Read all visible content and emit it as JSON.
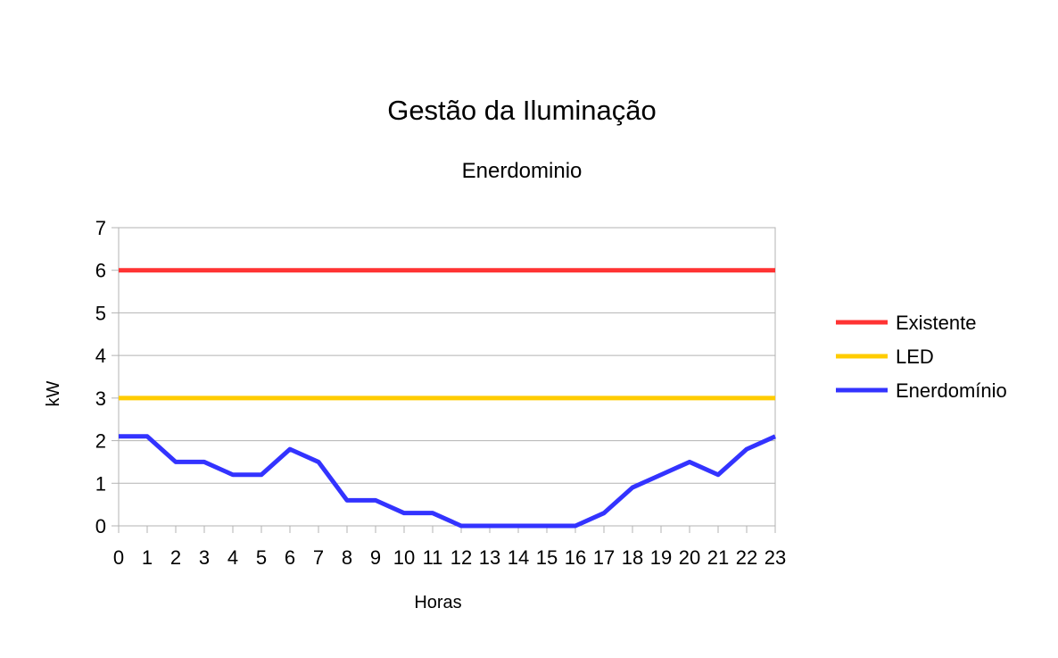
{
  "chart_data": {
    "type": "line",
    "title": "Gestão da Iluminação",
    "subtitle": "Enerdominio",
    "xlabel": "Horas",
    "ylabel": "kW",
    "ylim": [
      0,
      7
    ],
    "yticks": [
      0,
      1,
      2,
      3,
      4,
      5,
      6,
      7
    ],
    "x": [
      0,
      1,
      2,
      3,
      4,
      5,
      6,
      7,
      8,
      9,
      10,
      11,
      12,
      13,
      14,
      15,
      16,
      17,
      18,
      19,
      20,
      21,
      22,
      23
    ],
    "grid": true,
    "legend_position": "right",
    "series": [
      {
        "name": "Existente",
        "color": "#ff3333",
        "values": [
          6,
          6,
          6,
          6,
          6,
          6,
          6,
          6,
          6,
          6,
          6,
          6,
          6,
          6,
          6,
          6,
          6,
          6,
          6,
          6,
          6,
          6,
          6,
          6
        ]
      },
      {
        "name": "LED",
        "color": "#ffcc00",
        "values": [
          3,
          3,
          3,
          3,
          3,
          3,
          3,
          3,
          3,
          3,
          3,
          3,
          3,
          3,
          3,
          3,
          3,
          3,
          3,
          3,
          3,
          3,
          3,
          3
        ]
      },
      {
        "name": "Enerdomínio",
        "color": "#3333ff",
        "values": [
          2.1,
          2.1,
          1.5,
          1.5,
          1.2,
          1.2,
          1.8,
          1.5,
          0.6,
          0.6,
          0.3,
          0.3,
          0,
          0,
          0,
          0,
          0,
          0.3,
          0.9,
          1.2,
          1.5,
          1.2,
          1.8,
          2.1
        ]
      }
    ]
  }
}
